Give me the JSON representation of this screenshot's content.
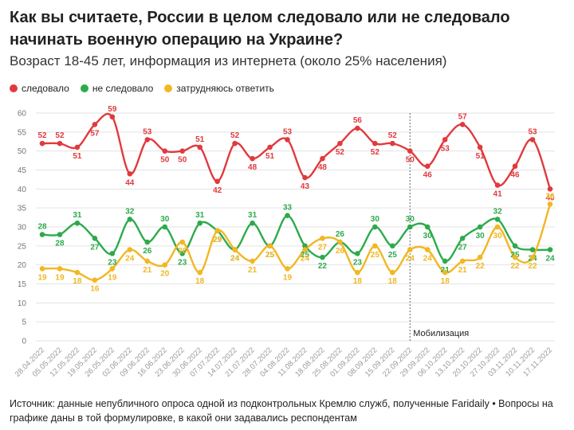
{
  "chart_data": {
    "type": "line",
    "title": "Как вы считаете, России в целом следовало или не следовало начинать военную операцию на Украине?",
    "subtitle": "Возраст 18-45 лет, информация из интернета (около 25% населения)",
    "x": [
      "28.04.2022",
      "05.05.2022",
      "12.05.2022",
      "19.05.2022",
      "26.05.2022",
      "02.06.2022",
      "09.06.2022",
      "16.06.2022",
      "23.06.2022",
      "30.06.2022",
      "07.07.2022",
      "14.07.2022",
      "21.07.2022",
      "28.07.2022",
      "04.08.2022",
      "11.08.2022",
      "18.08.2022",
      "25.08.2022",
      "01.09.2022",
      "08.09.2022",
      "15.09.2022",
      "22.09.2022",
      "29.09.2022",
      "06.10.2022",
      "13.10.2022",
      "20.10.2022",
      "27.10.2022",
      "03.11.2022",
      "10.11.2022",
      "17.11.2022"
    ],
    "series": [
      {
        "name": "следовало",
        "color": "#e03a3e",
        "values": [
          52,
          52,
          51,
          57,
          59,
          44,
          53,
          50,
          50,
          51,
          42,
          52,
          48,
          51,
          53,
          43,
          48,
          52,
          56,
          52,
          52,
          50,
          46,
          53,
          57,
          51,
          41,
          46,
          53,
          40
        ]
      },
      {
        "name": "не следовало",
        "color": "#2eaa4d",
        "values": [
          28,
          28,
          31,
          27,
          23,
          32,
          26,
          30,
          23,
          31,
          29,
          24,
          31,
          25,
          33,
          25,
          22,
          26,
          23,
          30,
          25,
          30,
          30,
          21,
          27,
          30,
          32,
          25,
          24,
          24
        ]
      },
      {
        "name": "затрудняюсь ответить",
        "color": "#f2b722",
        "values": [
          19,
          19,
          18,
          16,
          19,
          24,
          21,
          20,
          26,
          18,
          29,
          24,
          21,
          25,
          19,
          24,
          27,
          26,
          18,
          25,
          18,
          24,
          24,
          18,
          21,
          22,
          30,
          22,
          22,
          36
        ]
      }
    ],
    "ylim": [
      0,
      60
    ],
    "yticks": [
      0,
      5,
      10,
      15,
      20,
      25,
      30,
      35,
      40,
      45,
      50,
      55,
      60
    ],
    "grid": true,
    "legend": "top-left",
    "annotation": "Мобилизация"
  },
  "source_text": "Источник: данные непубличного опроса одной из подконтрольных Кремлю служб, полученные Faridaily • Вопросы на графике даны в той формулировке, в какой они задавались респондентам"
}
